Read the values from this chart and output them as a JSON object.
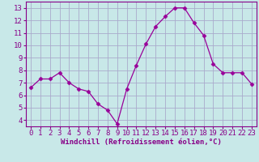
{
  "x": [
    0,
    1,
    2,
    3,
    4,
    5,
    6,
    7,
    8,
    9,
    10,
    11,
    12,
    13,
    14,
    15,
    16,
    17,
    18,
    19,
    20,
    21,
    22,
    23
  ],
  "y": [
    6.6,
    7.3,
    7.3,
    7.8,
    7.0,
    6.5,
    6.3,
    5.3,
    4.8,
    3.7,
    6.5,
    8.4,
    10.1,
    11.5,
    12.3,
    13.0,
    13.0,
    11.8,
    10.8,
    8.5,
    7.8,
    7.8,
    7.8,
    6.9
  ],
  "line_color": "#990099",
  "marker": "D",
  "marker_size": 2.5,
  "bg_color": "#c8e8e8",
  "grid_color": "#aaaacc",
  "xlabel": "Windchill (Refroidissement éolien,°C)",
  "xlim": [
    -0.5,
    23.5
  ],
  "ylim": [
    3.5,
    13.5
  ],
  "yticks": [
    4,
    5,
    6,
    7,
    8,
    9,
    10,
    11,
    12,
    13
  ],
  "xticks": [
    0,
    1,
    2,
    3,
    4,
    5,
    6,
    7,
    8,
    9,
    10,
    11,
    12,
    13,
    14,
    15,
    16,
    17,
    18,
    19,
    20,
    21,
    22,
    23
  ],
  "tick_color": "#880088",
  "label_color": "#880088",
  "label_fontsize": 6.5,
  "tick_fontsize": 6.5
}
